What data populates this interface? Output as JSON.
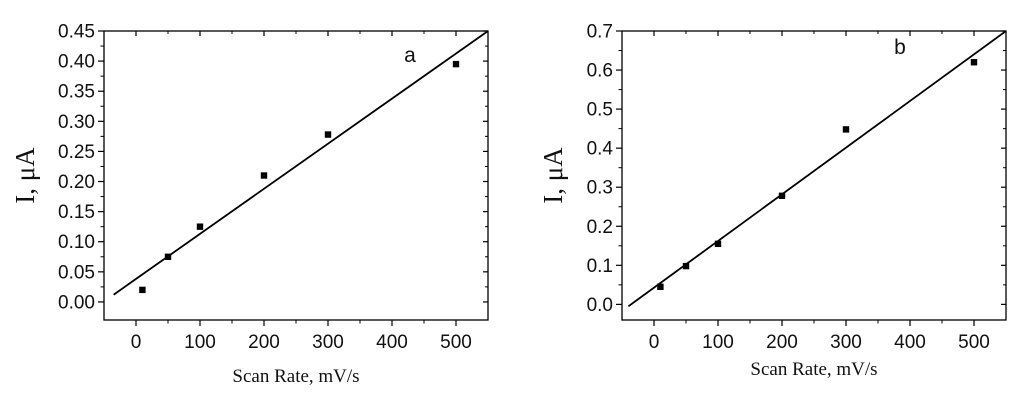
{
  "chart_data": [
    {
      "type": "scatter",
      "panel_label": "a",
      "xlabel": "Scan Rate, mV/s",
      "ylabel": "I, μA",
      "xlim": [
        -50,
        550
      ],
      "ylim": [
        -0.03,
        0.45
      ],
      "xticks": [
        0,
        100,
        200,
        300,
        400,
        500
      ],
      "xtick_labels": [
        "0",
        "100",
        "200",
        "300",
        "400",
        "500"
      ],
      "yticks": [
        0.0,
        0.05,
        0.1,
        0.15,
        0.2,
        0.25,
        0.3,
        0.35,
        0.4,
        0.45
      ],
      "ytick_labels": [
        "0.00",
        "0.05",
        "0.10",
        "0.15",
        "0.20",
        "0.25",
        "0.30",
        "0.35",
        "0.40",
        "0.45"
      ],
      "points": [
        {
          "x": 10,
          "y": 0.02
        },
        {
          "x": 50,
          "y": 0.075
        },
        {
          "x": 100,
          "y": 0.125
        },
        {
          "x": 200,
          "y": 0.21
        },
        {
          "x": 300,
          "y": 0.278
        },
        {
          "x": 500,
          "y": 0.395
        }
      ],
      "fit_line": {
        "x": [
          -35,
          550
        ],
        "y": [
          0.012,
          0.45
        ]
      },
      "grid": false
    },
    {
      "type": "scatter",
      "panel_label": "b",
      "xlabel": "Scan Rate, mV/s",
      "ylabel": "I, μA",
      "xlim": [
        -50,
        550
      ],
      "ylim": [
        -0.04,
        0.7
      ],
      "xticks": [
        0,
        100,
        200,
        300,
        400,
        500
      ],
      "xtick_labels": [
        "0",
        "100",
        "200",
        "300",
        "400",
        "500"
      ],
      "yticks": [
        0.0,
        0.1,
        0.2,
        0.3,
        0.4,
        0.5,
        0.6,
        0.7
      ],
      "ytick_labels": [
        "0.0",
        "0.1",
        "0.2",
        "0.3",
        "0.4",
        "0.5",
        "0.6",
        "0.7"
      ],
      "points": [
        {
          "x": 10,
          "y": 0.045
        },
        {
          "x": 50,
          "y": 0.098
        },
        {
          "x": 100,
          "y": 0.155
        },
        {
          "x": 200,
          "y": 0.278
        },
        {
          "x": 300,
          "y": 0.448
        },
        {
          "x": 500,
          "y": 0.62
        }
      ],
      "fit_line": {
        "x": [
          -40,
          550
        ],
        "y": [
          -0.005,
          0.7
        ]
      },
      "grid": false
    }
  ]
}
